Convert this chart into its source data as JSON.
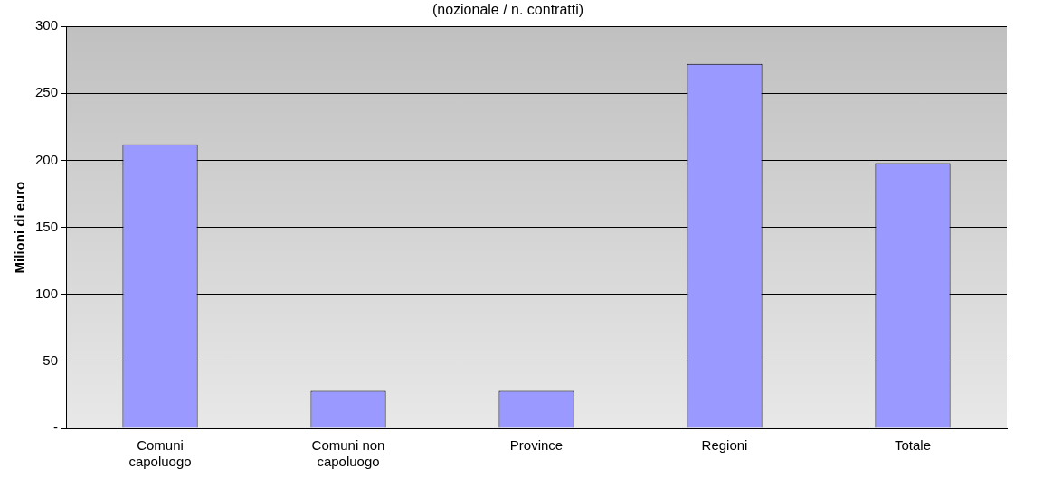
{
  "chart_data": {
    "type": "bar",
    "title": "(nozionale / n. contratti)",
    "ylabel": "Milioni di euro",
    "categories": [
      "Comuni capoluogo",
      "Comuni non capoluogo",
      "Province",
      "Regioni",
      "Totale"
    ],
    "values": [
      212,
      28,
      28,
      272,
      198
    ],
    "color": "#9999ff",
    "ylim": [
      0,
      300
    ],
    "yticks": [
      {
        "value": 0,
        "label": "-"
      },
      50,
      100,
      150,
      200,
      250,
      300
    ],
    "grid": "y",
    "legend": false
  }
}
